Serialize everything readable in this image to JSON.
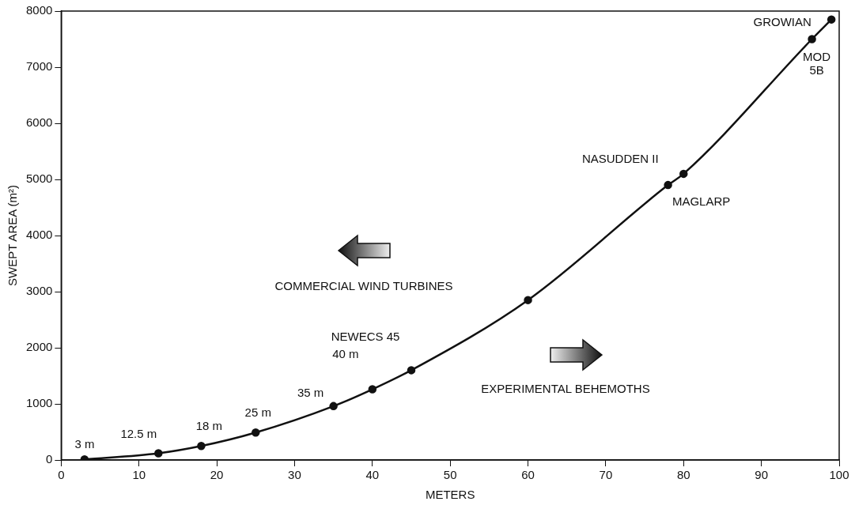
{
  "chart_data": {
    "type": "line",
    "xlabel": "METERS",
    "ylabel": "SWEPT AREA (m²)",
    "x": [
      3,
      12.5,
      18,
      25,
      35,
      40,
      45,
      60,
      78,
      80,
      96.5,
      99
    ],
    "values": [
      10,
      120,
      250,
      490,
      960,
      1260,
      1600,
      2850,
      4900,
      5100,
      7500,
      7850
    ],
    "color": "#111111",
    "marker": "circle",
    "line_style": "solid",
    "xlim": [
      0,
      100
    ],
    "xticks": [
      0,
      10,
      20,
      30,
      40,
      50,
      60,
      70,
      80,
      90,
      100
    ],
    "ylim": [
      0,
      8000
    ],
    "yticks": [
      0,
      1000,
      2000,
      3000,
      4000,
      5000,
      6000,
      7000,
      8000
    ],
    "grid": false,
    "legend": false,
    "annotations": [
      {
        "text": "3 m",
        "x": 3,
        "y": 10
      },
      {
        "text": "12.5 m",
        "x": 12.5,
        "y": 120
      },
      {
        "text": "18 m",
        "x": 18,
        "y": 250
      },
      {
        "text": "25 m",
        "x": 25,
        "y": 490
      },
      {
        "text": "35 m",
        "x": 35,
        "y": 960
      },
      {
        "text": "40 m",
        "x": 40,
        "y": 1260
      },
      {
        "text": "NEWECS 45",
        "x": 45,
        "y": 1600
      },
      {
        "text": "MAGLARP",
        "x": 78,
        "y": 4900
      },
      {
        "text": "NASUDDEN II",
        "x": 80,
        "y": 5100
      },
      {
        "text": "MOD 5B",
        "x": 96.5,
        "y": 7500
      },
      {
        "text": "GROWIAN",
        "x": 99,
        "y": 7850
      },
      "COMMERCIAL WIND TURBINES",
      "EXPERIMENTAL BEHEMOTHS"
    ]
  }
}
